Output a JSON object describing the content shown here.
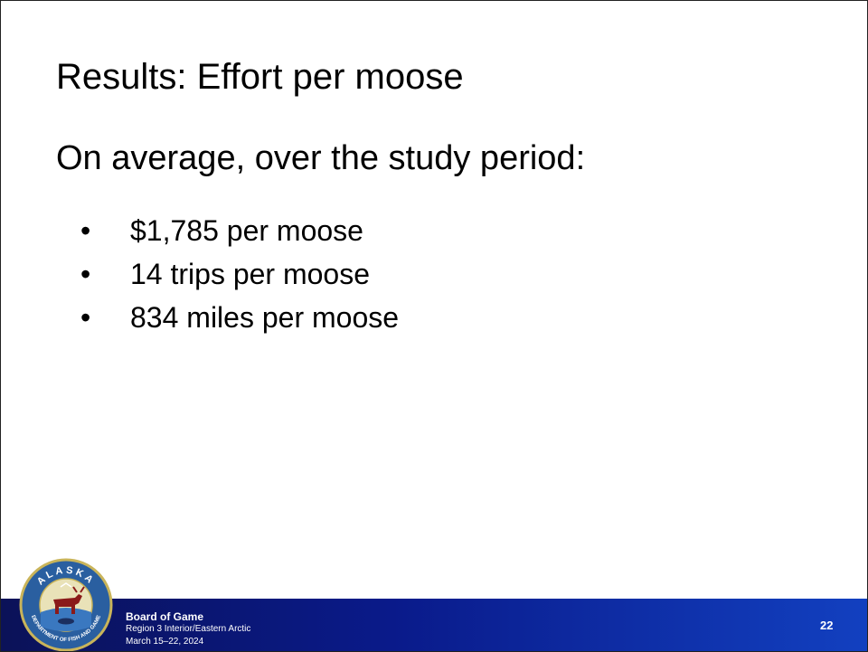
{
  "slide": {
    "title": "Results: Effort per moose",
    "subtitle": "On average, over the study period:",
    "bullets": [
      "$1,785 per moose",
      "14 trips per moose",
      "834 miles per moose"
    ],
    "footer": {
      "logo_top": "ALASKA",
      "logo_bottom": "DEPARTMENT OF FISH AND GAME",
      "org": "Board of Game",
      "meeting": "Region 3 Interior/Eastern Arctic",
      "dates": "March 15–22, 2024",
      "page": "22"
    }
  }
}
